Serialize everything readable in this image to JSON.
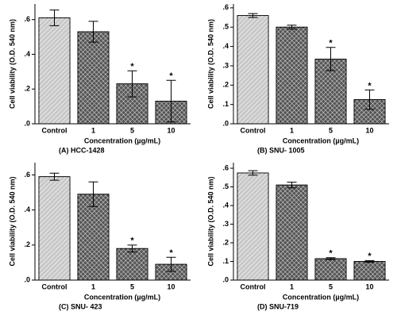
{
  "chart_data": [
    {
      "type": "bar",
      "caption": "(A)  HCC-1428",
      "y_label": "Cell viability (O.D. 540 nm)",
      "x_label": "Concentration (µg/mL)",
      "categories": [
        "Control",
        "1",
        "5",
        "10"
      ],
      "values": [
        0.61,
        0.53,
        0.23,
        0.13
      ],
      "errors": [
        0.045,
        0.06,
        0.075,
        0.12
      ],
      "significance": [
        null,
        null,
        "*",
        "*"
      ],
      "colors": [
        "#c8c8c8",
        "#555555",
        "#555555",
        "#555555"
      ],
      "ylim": [
        0,
        0.69
      ],
      "yticks": [
        {
          "value": 0,
          "label": ".0"
        },
        {
          "value": 0.2,
          "label": ".2"
        },
        {
          "value": 0.4,
          "label": ".4"
        },
        {
          "value": 0.6,
          "label": ".6"
        }
      ]
    },
    {
      "type": "bar",
      "caption": "(B)  SNU- 1005",
      "y_label": "Cell viability (O.D. 540 nm)",
      "x_label": "Concentration (µg/mL)",
      "categories": [
        "Control",
        "1",
        "5",
        "10"
      ],
      "values": [
        0.56,
        0.5,
        0.335,
        0.125
      ],
      "errors": [
        0.01,
        0.01,
        0.06,
        0.05
      ],
      "significance": [
        null,
        null,
        "*",
        "*"
      ],
      "colors": [
        "#c8c8c8",
        "#555555",
        "#555555",
        "#555555"
      ],
      "ylim": [
        0,
        0.62
      ],
      "yticks": [
        {
          "value": 0,
          "label": ".0"
        },
        {
          "value": 0.1,
          "label": ".1"
        },
        {
          "value": 0.2,
          "label": ".2"
        },
        {
          "value": 0.3,
          "label": ".3"
        },
        {
          "value": 0.4,
          "label": ".4"
        },
        {
          "value": 0.5,
          "label": ".5"
        },
        {
          "value": 0.6,
          "label": ".6"
        }
      ]
    },
    {
      "type": "bar",
      "caption": "(C)  SNU- 423",
      "y_label": "Cell viability (O.D. 540 nm)",
      "x_label": "Concentration (µg/mL)",
      "categories": [
        "Control",
        "1",
        "5",
        "10"
      ],
      "values": [
        0.59,
        0.49,
        0.18,
        0.09
      ],
      "errors": [
        0.02,
        0.07,
        0.02,
        0.04
      ],
      "significance": [
        null,
        null,
        "*",
        "*"
      ],
      "colors": [
        "#c8c8c8",
        "#555555",
        "#555555",
        "#555555"
      ],
      "ylim": [
        0,
        0.67
      ],
      "yticks": [
        {
          "value": 0,
          "label": ".0"
        },
        {
          "value": 0.2,
          "label": ".2"
        },
        {
          "value": 0.4,
          "label": ".4"
        },
        {
          "value": 0.6,
          "label": ".6"
        }
      ]
    },
    {
      "type": "bar",
      "caption": "(D) SNU-719",
      "y_label": "Cell viability (O.D. 540 nm)",
      "x_label": "Concentration (µg/mL)",
      "categories": [
        "Control",
        "1",
        "5",
        "10"
      ],
      "values": [
        0.575,
        0.51,
        0.115,
        0.1
      ],
      "errors": [
        0.012,
        0.015,
        0.005,
        0.005
      ],
      "significance": [
        null,
        null,
        "*",
        "*"
      ],
      "colors": [
        "#c8c8c8",
        "#555555",
        "#555555",
        "#555555"
      ],
      "ylim": [
        0,
        0.63
      ],
      "yticks": [
        {
          "value": 0,
          "label": ".0"
        },
        {
          "value": 0.1,
          "label": ".1"
        },
        {
          "value": 0.2,
          "label": ".2"
        },
        {
          "value": 0.3,
          "label": ".3"
        },
        {
          "value": 0.4,
          "label": ".4"
        },
        {
          "value": 0.5,
          "label": ".5"
        },
        {
          "value": 0.6,
          "label": ".6"
        }
      ]
    }
  ]
}
